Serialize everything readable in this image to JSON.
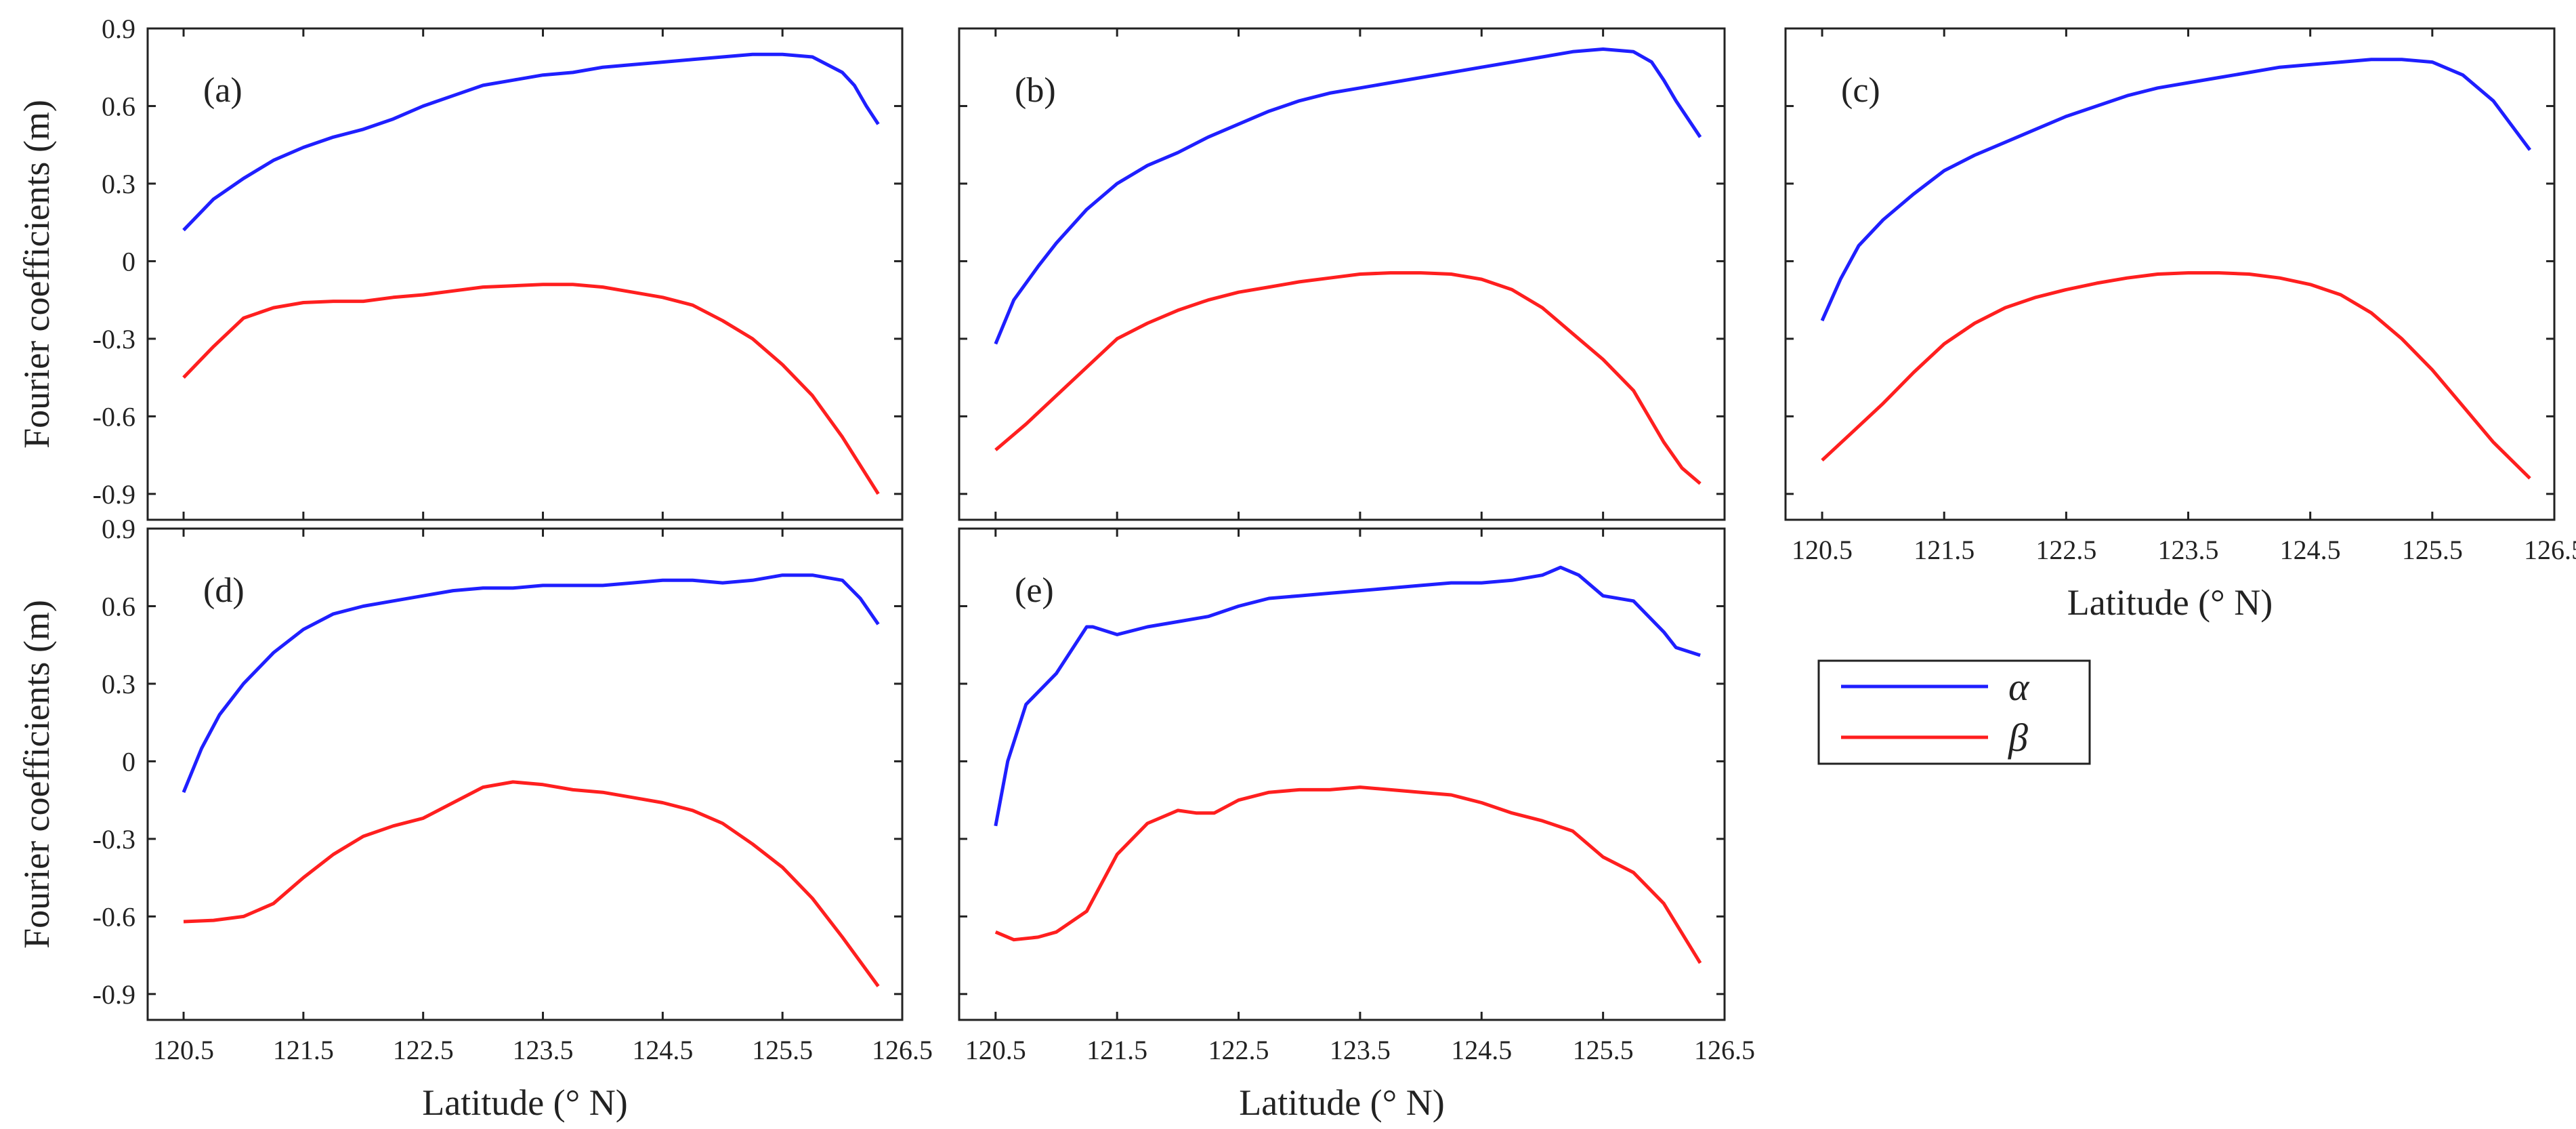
{
  "figure": {
    "ylabel": "Fourier coefficients (m)",
    "xlabel": "Latitude (° N)",
    "xticks": [
      120.5,
      121.5,
      122.5,
      123.5,
      124.5,
      125.5,
      126.5
    ],
    "yticks": [
      0.9,
      0.6,
      0.3,
      0,
      -0.3,
      -0.6,
      -0.9
    ],
    "legend": [
      {
        "name": "α",
        "color": "#1f1fff"
      },
      {
        "name": "β",
        "color": "#ff1f1f"
      }
    ]
  },
  "chart_data": [
    {
      "type": "line",
      "label": "(a)",
      "xlim": [
        120.2,
        126.5
      ],
      "ylim": [
        -1.0,
        0.9
      ],
      "show_xticks": false,
      "show_yticks": true,
      "show_xlabel": false,
      "show_ylabel": true,
      "series": [
        {
          "name": "α",
          "color": "#1f1fff",
          "x": [
            120.5,
            120.75,
            121.0,
            121.25,
            121.5,
            121.75,
            122.0,
            122.25,
            122.5,
            122.75,
            123.0,
            123.25,
            123.5,
            123.75,
            124.0,
            124.25,
            124.5,
            124.75,
            125.0,
            125.25,
            125.5,
            125.75,
            126.0,
            126.1,
            126.2,
            126.3
          ],
          "values": [
            0.12,
            0.24,
            0.32,
            0.39,
            0.44,
            0.48,
            0.51,
            0.55,
            0.6,
            0.64,
            0.68,
            0.7,
            0.72,
            0.73,
            0.75,
            0.76,
            0.77,
            0.78,
            0.79,
            0.8,
            0.8,
            0.79,
            0.73,
            0.68,
            0.6,
            0.53
          ]
        },
        {
          "name": "β",
          "color": "#ff1f1f",
          "x": [
            120.5,
            120.75,
            121.0,
            121.25,
            121.5,
            121.75,
            122.0,
            122.25,
            122.5,
            122.75,
            123.0,
            123.25,
            123.5,
            123.75,
            124.0,
            124.25,
            124.5,
            124.75,
            125.0,
            125.25,
            125.5,
            125.75,
            126.0,
            126.3
          ],
          "values": [
            -0.45,
            -0.33,
            -0.22,
            -0.18,
            -0.16,
            -0.155,
            -0.155,
            -0.14,
            -0.13,
            -0.115,
            -0.1,
            -0.095,
            -0.09,
            -0.09,
            -0.1,
            -0.12,
            -0.14,
            -0.17,
            -0.23,
            -0.3,
            -0.4,
            -0.52,
            -0.68,
            -0.9
          ]
        }
      ]
    },
    {
      "type": "line",
      "label": "(b)",
      "xlim": [
        120.2,
        126.5
      ],
      "ylim": [
        -1.0,
        0.9
      ],
      "show_xticks": false,
      "show_yticks": false,
      "show_xlabel": false,
      "show_ylabel": false,
      "series": [
        {
          "name": "α",
          "color": "#1f1fff",
          "x": [
            120.5,
            120.65,
            120.85,
            121.0,
            121.25,
            121.5,
            121.75,
            122.0,
            122.25,
            122.5,
            122.75,
            123.0,
            123.25,
            123.5,
            123.75,
            124.0,
            124.25,
            124.5,
            124.75,
            125.0,
            125.25,
            125.5,
            125.75,
            125.9,
            126.0,
            126.1,
            126.3
          ],
          "values": [
            -0.32,
            -0.15,
            -0.02,
            0.07,
            0.2,
            0.3,
            0.37,
            0.42,
            0.48,
            0.53,
            0.58,
            0.62,
            0.65,
            0.67,
            0.69,
            0.71,
            0.73,
            0.75,
            0.77,
            0.79,
            0.81,
            0.82,
            0.81,
            0.77,
            0.7,
            0.62,
            0.48
          ]
        },
        {
          "name": "β",
          "color": "#ff1f1f",
          "x": [
            120.5,
            120.75,
            121.0,
            121.25,
            121.5,
            121.75,
            122.0,
            122.25,
            122.5,
            122.75,
            123.0,
            123.25,
            123.5,
            123.75,
            124.0,
            124.25,
            124.5,
            124.75,
            125.0,
            125.25,
            125.5,
            125.75,
            125.9,
            126.0,
            126.15,
            126.3
          ],
          "values": [
            -0.73,
            -0.63,
            -0.52,
            -0.41,
            -0.3,
            -0.24,
            -0.19,
            -0.15,
            -0.12,
            -0.1,
            -0.08,
            -0.065,
            -0.05,
            -0.045,
            -0.045,
            -0.05,
            -0.07,
            -0.11,
            -0.18,
            -0.28,
            -0.38,
            -0.5,
            -0.62,
            -0.7,
            -0.8,
            -0.86
          ]
        }
      ]
    },
    {
      "type": "line",
      "label": "(c)",
      "xlim": [
        120.2,
        126.5
      ],
      "ylim": [
        -1.0,
        0.9
      ],
      "show_xticks": true,
      "show_yticks": false,
      "show_xlabel": true,
      "show_ylabel": false,
      "series": [
        {
          "name": "α",
          "color": "#1f1fff",
          "x": [
            120.5,
            120.65,
            120.8,
            121.0,
            121.25,
            121.5,
            121.75,
            122.0,
            122.25,
            122.5,
            122.75,
            123.0,
            123.25,
            123.5,
            123.75,
            124.0,
            124.25,
            124.5,
            124.75,
            125.0,
            125.25,
            125.5,
            125.75,
            126.0,
            126.3
          ],
          "values": [
            -0.23,
            -0.07,
            0.06,
            0.16,
            0.26,
            0.35,
            0.41,
            0.46,
            0.51,
            0.56,
            0.6,
            0.64,
            0.67,
            0.69,
            0.71,
            0.73,
            0.75,
            0.76,
            0.77,
            0.78,
            0.78,
            0.77,
            0.72,
            0.62,
            0.43
          ]
        },
        {
          "name": "β",
          "color": "#ff1f1f",
          "x": [
            120.5,
            120.75,
            121.0,
            121.25,
            121.5,
            121.75,
            122.0,
            122.25,
            122.5,
            122.75,
            123.0,
            123.25,
            123.5,
            123.75,
            124.0,
            124.25,
            124.5,
            124.75,
            125.0,
            125.25,
            125.5,
            125.75,
            126.0,
            126.3
          ],
          "values": [
            -0.77,
            -0.66,
            -0.55,
            -0.43,
            -0.32,
            -0.24,
            -0.18,
            -0.14,
            -0.11,
            -0.085,
            -0.065,
            -0.05,
            -0.045,
            -0.045,
            -0.05,
            -0.065,
            -0.09,
            -0.13,
            -0.2,
            -0.3,
            -0.42,
            -0.56,
            -0.7,
            -0.84
          ]
        }
      ]
    },
    {
      "type": "line",
      "label": "(d)",
      "xlim": [
        120.2,
        126.5
      ],
      "ylim": [
        -1.0,
        0.9
      ],
      "show_xticks": true,
      "show_yticks": true,
      "show_xlabel": true,
      "show_ylabel": true,
      "series": [
        {
          "name": "α",
          "color": "#1f1fff",
          "x": [
            120.5,
            120.65,
            120.8,
            121.0,
            121.25,
            121.5,
            121.75,
            122.0,
            122.25,
            122.5,
            122.75,
            123.0,
            123.25,
            123.5,
            123.75,
            124.0,
            124.25,
            124.5,
            124.75,
            125.0,
            125.25,
            125.5,
            125.75,
            126.0,
            126.15,
            126.3
          ],
          "values": [
            -0.12,
            0.05,
            0.18,
            0.3,
            0.42,
            0.51,
            0.57,
            0.6,
            0.62,
            0.64,
            0.66,
            0.67,
            0.67,
            0.68,
            0.68,
            0.68,
            0.69,
            0.7,
            0.7,
            0.69,
            0.7,
            0.72,
            0.72,
            0.7,
            0.63,
            0.53
          ]
        },
        {
          "name": "β",
          "color": "#ff1f1f",
          "x": [
            120.5,
            120.75,
            121.0,
            121.25,
            121.5,
            121.75,
            122.0,
            122.25,
            122.5,
            122.75,
            123.0,
            123.25,
            123.5,
            123.75,
            124.0,
            124.25,
            124.5,
            124.75,
            125.0,
            125.25,
            125.5,
            125.75,
            126.0,
            126.3
          ],
          "values": [
            -0.62,
            -0.615,
            -0.6,
            -0.55,
            -0.45,
            -0.36,
            -0.29,
            -0.25,
            -0.22,
            -0.16,
            -0.1,
            -0.08,
            -0.09,
            -0.11,
            -0.12,
            -0.14,
            -0.16,
            -0.19,
            -0.24,
            -0.32,
            -0.41,
            -0.53,
            -0.68,
            -0.87
          ]
        }
      ]
    },
    {
      "type": "line",
      "label": "(e)",
      "xlim": [
        120.2,
        126.5
      ],
      "ylim": [
        -1.0,
        0.9
      ],
      "show_xticks": true,
      "show_yticks": false,
      "show_xlabel": true,
      "show_ylabel": false,
      "series": [
        {
          "name": "α",
          "color": "#1f1fff",
          "x": [
            120.5,
            120.6,
            120.75,
            121.0,
            121.25,
            121.3,
            121.5,
            121.75,
            122.0,
            122.25,
            122.5,
            122.75,
            123.0,
            123.25,
            123.5,
            123.75,
            124.0,
            124.25,
            124.5,
            124.75,
            125.0,
            125.15,
            125.3,
            125.5,
            125.75,
            126.0,
            126.1,
            126.3
          ],
          "values": [
            -0.25,
            0.0,
            0.22,
            0.34,
            0.52,
            0.52,
            0.49,
            0.52,
            0.54,
            0.56,
            0.6,
            0.63,
            0.64,
            0.65,
            0.66,
            0.67,
            0.68,
            0.69,
            0.69,
            0.7,
            0.72,
            0.75,
            0.72,
            0.64,
            0.62,
            0.5,
            0.44,
            0.41
          ]
        },
        {
          "name": "β",
          "color": "#ff1f1f",
          "x": [
            120.5,
            120.65,
            120.85,
            121.0,
            121.25,
            121.5,
            121.75,
            122.0,
            122.15,
            122.3,
            122.5,
            122.75,
            123.0,
            123.25,
            123.5,
            123.75,
            124.0,
            124.25,
            124.5,
            124.75,
            125.0,
            125.25,
            125.5,
            125.75,
            126.0,
            126.3
          ],
          "values": [
            -0.66,
            -0.69,
            -0.68,
            -0.66,
            -0.58,
            -0.36,
            -0.24,
            -0.19,
            -0.2,
            -0.2,
            -0.15,
            -0.12,
            -0.11,
            -0.11,
            -0.1,
            -0.11,
            -0.12,
            -0.13,
            -0.16,
            -0.2,
            -0.23,
            -0.27,
            -0.37,
            -0.43,
            -0.55,
            -0.78
          ]
        }
      ]
    }
  ]
}
